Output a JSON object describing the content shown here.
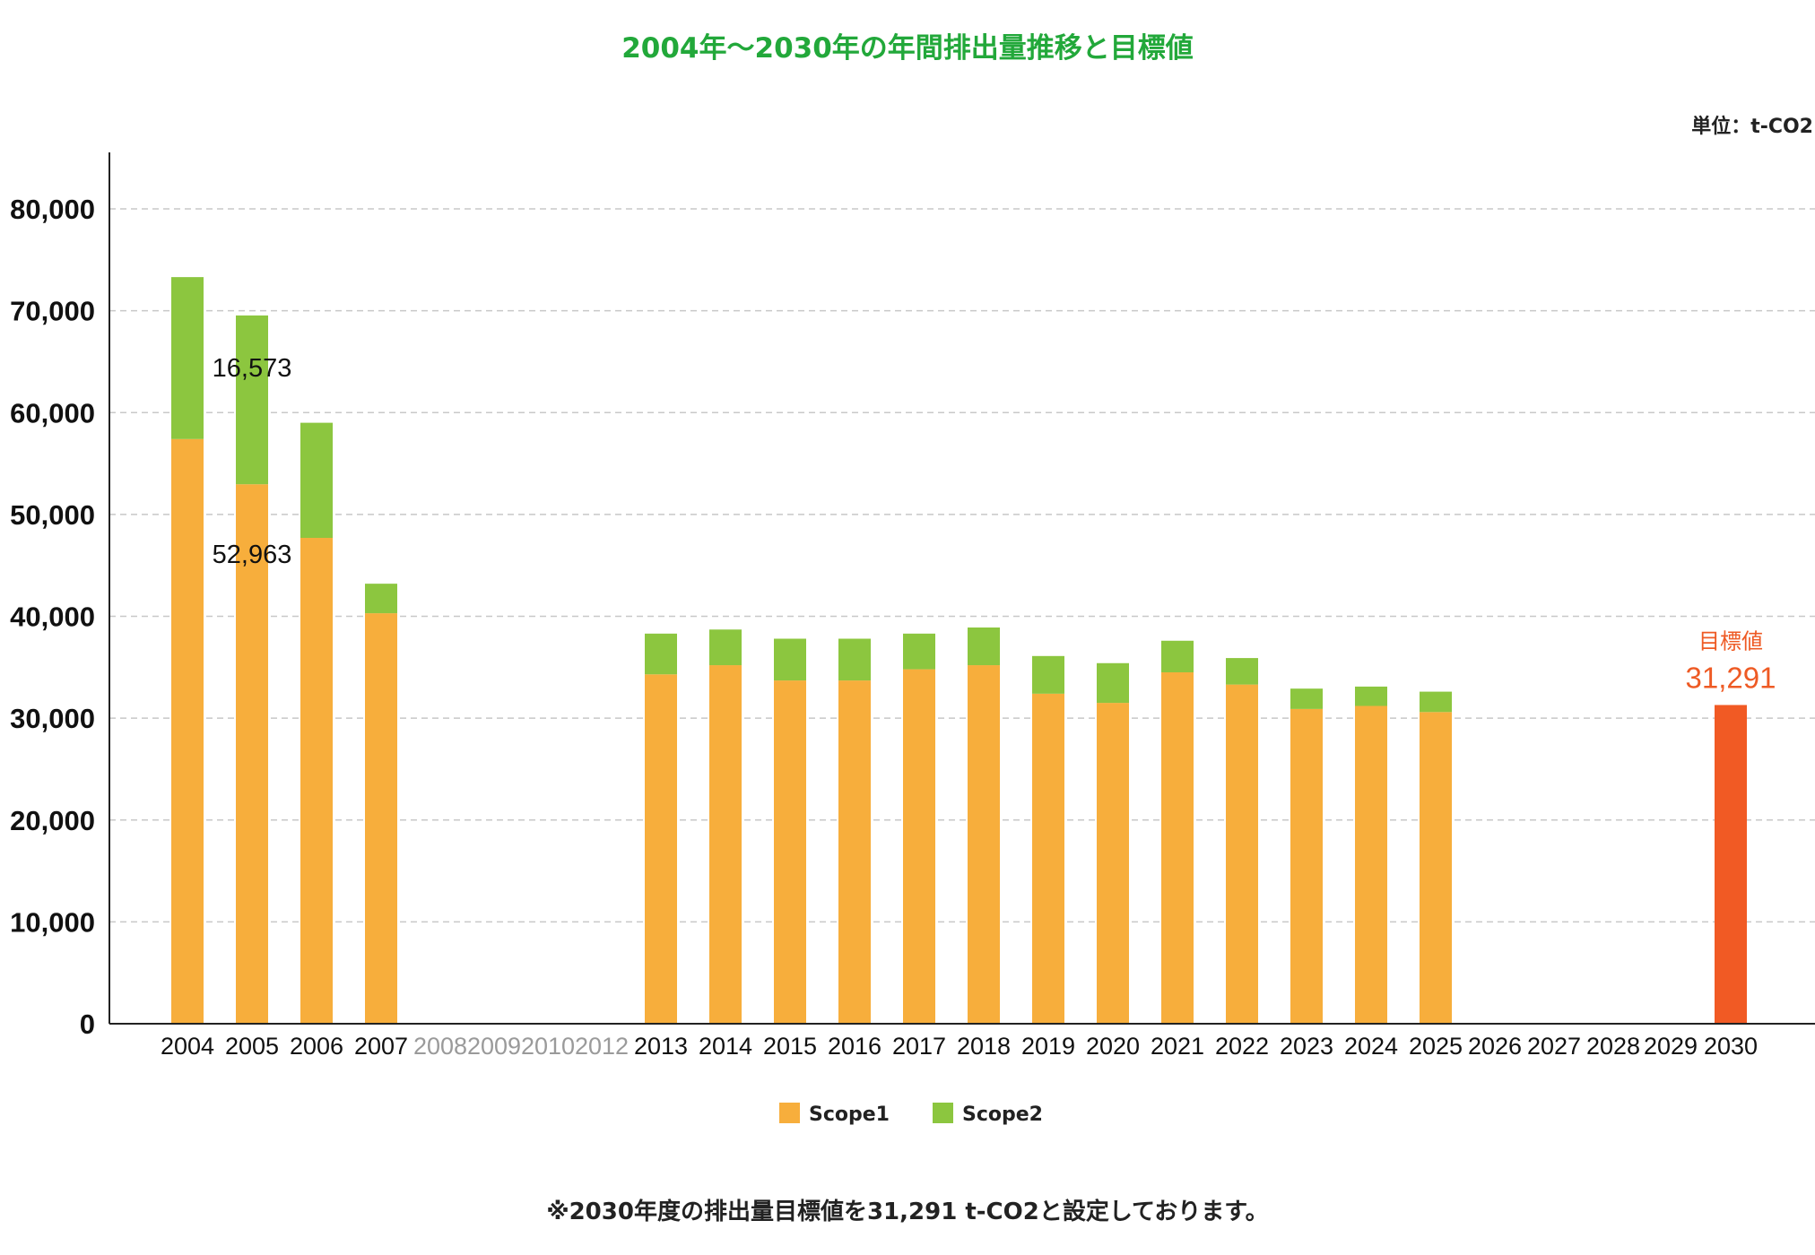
{
  "chart_data": {
    "type": "bar",
    "stacked": true,
    "title": "2004年〜2030年の年間排出量推移と目標値",
    "unit": "単位：t-CO2",
    "categories": [
      "2004",
      "2005",
      "2006",
      "2007",
      "2008",
      "2009",
      "2010",
      "2012",
      "2013",
      "2014",
      "2015",
      "2016",
      "2017",
      "2018",
      "2019",
      "2020",
      "2021",
      "2022",
      "2023",
      "2024",
      "2025",
      "2026",
      "2027",
      "2028",
      "2029",
      "2030"
    ],
    "muted_categories": [
      "2008",
      "2009",
      "2010",
      "2012"
    ],
    "series": [
      {
        "name": "Scope1",
        "color": "#f7ae3c",
        "values": [
          57400,
          52963,
          47700,
          40300,
          null,
          null,
          null,
          null,
          34300,
          35200,
          33700,
          33700,
          34800,
          35200,
          32400,
          31500,
          34500,
          33300,
          30900,
          31200,
          30600,
          null,
          null,
          null,
          null,
          null
        ]
      },
      {
        "name": "Scope2",
        "color": "#8cc63f",
        "values": [
          15900,
          16573,
          11300,
          2900,
          null,
          null,
          null,
          null,
          4000,
          3500,
          4100,
          4100,
          3500,
          3700,
          3700,
          3900,
          3100,
          2600,
          2000,
          1900,
          2000,
          null,
          null,
          null,
          null,
          null
        ]
      }
    ],
    "target": {
      "category": "2030",
      "value": 31291,
      "label": "目標値",
      "value_label": "31,291",
      "color": "#f15a24"
    },
    "data_labels": [
      {
        "category": "2005",
        "series": "Scope2",
        "text": "16,573"
      },
      {
        "category": "2005",
        "series": "Scope1",
        "text": "52,963"
      }
    ],
    "yticks": [
      "0",
      "10,000",
      "20,000",
      "30,000",
      "40,000",
      "50,000",
      "60,000",
      "70,000",
      "80,000"
    ],
    "ylim": [
      0,
      80000
    ],
    "grid": true,
    "legend_position": "bottom-center",
    "footnote": "※2030年度の排出量目標値を31,291 t-CO2と設定しております。"
  }
}
